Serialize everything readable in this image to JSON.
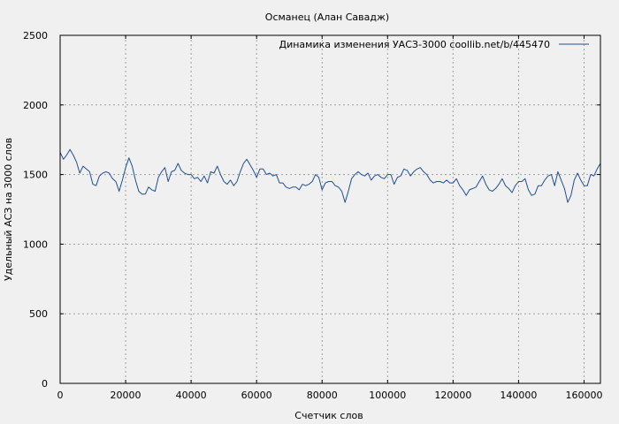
{
  "chart_data": {
    "type": "line",
    "title": "Османец (Алан Савадж)",
    "xlabel": "Счетчик слов",
    "ylabel": "Удельный АСЗ на 3000 слов",
    "xlim": [
      0,
      165000
    ],
    "ylim": [
      0,
      2500
    ],
    "xticks": [
      0,
      20000,
      40000,
      60000,
      80000,
      100000,
      120000,
      140000,
      160000
    ],
    "yticks": [
      0,
      500,
      1000,
      1500,
      2000,
      2500
    ],
    "grid": true,
    "legend_position": "top-right",
    "series": [
      {
        "name": "Динамика изменения УАСЗ-3000  coollib.net/b/445470",
        "color": "#1f4e96",
        "points": [
          [
            0,
            1660
          ],
          [
            1000,
            1610
          ],
          [
            2000,
            1640
          ],
          [
            3000,
            1680
          ],
          [
            4000,
            1640
          ],
          [
            5000,
            1590
          ],
          [
            6000,
            1510
          ],
          [
            7000,
            1560
          ],
          [
            8000,
            1540
          ],
          [
            9000,
            1520
          ],
          [
            10000,
            1430
          ],
          [
            11000,
            1420
          ],
          [
            12000,
            1490
          ],
          [
            13000,
            1510
          ],
          [
            14000,
            1520
          ],
          [
            15000,
            1510
          ],
          [
            16000,
            1470
          ],
          [
            17000,
            1450
          ],
          [
            18000,
            1380
          ],
          [
            19000,
            1460
          ],
          [
            20000,
            1550
          ],
          [
            21000,
            1620
          ],
          [
            22000,
            1560
          ],
          [
            23000,
            1460
          ],
          [
            24000,
            1380
          ],
          [
            25000,
            1360
          ],
          [
            26000,
            1360
          ],
          [
            27000,
            1410
          ],
          [
            28000,
            1390
          ],
          [
            29000,
            1380
          ],
          [
            30000,
            1480
          ],
          [
            31000,
            1520
          ],
          [
            32000,
            1550
          ],
          [
            33000,
            1450
          ],
          [
            34000,
            1520
          ],
          [
            35000,
            1530
          ],
          [
            36000,
            1580
          ],
          [
            37000,
            1530
          ],
          [
            38000,
            1510
          ],
          [
            39000,
            1500
          ],
          [
            40000,
            1500
          ],
          [
            41000,
            1470
          ],
          [
            42000,
            1480
          ],
          [
            43000,
            1450
          ],
          [
            44000,
            1490
          ],
          [
            45000,
            1440
          ],
          [
            46000,
            1520
          ],
          [
            47000,
            1510
          ],
          [
            48000,
            1560
          ],
          [
            49000,
            1500
          ],
          [
            50000,
            1450
          ],
          [
            51000,
            1430
          ],
          [
            52000,
            1460
          ],
          [
            53000,
            1420
          ],
          [
            54000,
            1450
          ],
          [
            55000,
            1520
          ],
          [
            56000,
            1580
          ],
          [
            57000,
            1610
          ],
          [
            58000,
            1570
          ],
          [
            59000,
            1530
          ],
          [
            60000,
            1480
          ],
          [
            61000,
            1540
          ],
          [
            62000,
            1540
          ],
          [
            63000,
            1500
          ],
          [
            64000,
            1510
          ],
          [
            65000,
            1490
          ],
          [
            66000,
            1500
          ],
          [
            67000,
            1440
          ],
          [
            68000,
            1440
          ],
          [
            69000,
            1410
          ],
          [
            70000,
            1400
          ],
          [
            71000,
            1410
          ],
          [
            72000,
            1410
          ],
          [
            73000,
            1390
          ],
          [
            74000,
            1430
          ],
          [
            75000,
            1420
          ],
          [
            76000,
            1430
          ],
          [
            77000,
            1450
          ],
          [
            78000,
            1500
          ],
          [
            79000,
            1480
          ],
          [
            80000,
            1390
          ],
          [
            81000,
            1440
          ],
          [
            82000,
            1450
          ],
          [
            83000,
            1450
          ],
          [
            84000,
            1420
          ],
          [
            85000,
            1410
          ],
          [
            86000,
            1380
          ],
          [
            87000,
            1300
          ],
          [
            88000,
            1380
          ],
          [
            89000,
            1470
          ],
          [
            90000,
            1500
          ],
          [
            91000,
            1520
          ],
          [
            92000,
            1500
          ],
          [
            93000,
            1490
          ],
          [
            94000,
            1510
          ],
          [
            95000,
            1460
          ],
          [
            96000,
            1490
          ],
          [
            97000,
            1500
          ],
          [
            98000,
            1480
          ],
          [
            99000,
            1470
          ],
          [
            100000,
            1500
          ],
          [
            101000,
            1500
          ],
          [
            102000,
            1430
          ],
          [
            103000,
            1480
          ],
          [
            104000,
            1490
          ],
          [
            105000,
            1540
          ],
          [
            106000,
            1530
          ],
          [
            107000,
            1490
          ],
          [
            108000,
            1520
          ],
          [
            109000,
            1540
          ],
          [
            110000,
            1550
          ],
          [
            111000,
            1520
          ],
          [
            112000,
            1500
          ],
          [
            113000,
            1460
          ],
          [
            114000,
            1440
          ],
          [
            115000,
            1450
          ],
          [
            116000,
            1450
          ],
          [
            117000,
            1440
          ],
          [
            118000,
            1460
          ],
          [
            119000,
            1440
          ],
          [
            120000,
            1440
          ],
          [
            121000,
            1470
          ],
          [
            122000,
            1420
          ],
          [
            123000,
            1390
          ],
          [
            124000,
            1350
          ],
          [
            125000,
            1390
          ],
          [
            126000,
            1400
          ],
          [
            127000,
            1410
          ],
          [
            128000,
            1450
          ],
          [
            129000,
            1490
          ],
          [
            130000,
            1430
          ],
          [
            131000,
            1390
          ],
          [
            132000,
            1380
          ],
          [
            133000,
            1400
          ],
          [
            134000,
            1430
          ],
          [
            135000,
            1470
          ],
          [
            136000,
            1420
          ],
          [
            137000,
            1400
          ],
          [
            138000,
            1370
          ],
          [
            139000,
            1420
          ],
          [
            140000,
            1450
          ],
          [
            141000,
            1450
          ],
          [
            142000,
            1470
          ],
          [
            143000,
            1390
          ],
          [
            144000,
            1350
          ],
          [
            145000,
            1360
          ],
          [
            146000,
            1420
          ],
          [
            147000,
            1420
          ],
          [
            148000,
            1460
          ],
          [
            149000,
            1490
          ],
          [
            150000,
            1500
          ],
          [
            151000,
            1420
          ],
          [
            152000,
            1520
          ],
          [
            153000,
            1460
          ],
          [
            154000,
            1400
          ],
          [
            155000,
            1300
          ],
          [
            156000,
            1350
          ],
          [
            157000,
            1460
          ],
          [
            158000,
            1510
          ],
          [
            159000,
            1460
          ],
          [
            160000,
            1420
          ],
          [
            161000,
            1420
          ],
          [
            162000,
            1500
          ],
          [
            163000,
            1490
          ],
          [
            164000,
            1540
          ],
          [
            165000,
            1580
          ]
        ]
      }
    ]
  }
}
